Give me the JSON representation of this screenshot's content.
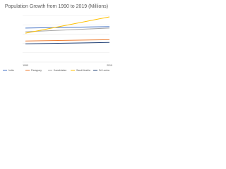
{
  "chart_data": {
    "type": "line",
    "title": "Population Growth from 1990 to 2019 (Millions)",
    "categories": [
      "1990",
      "2019"
    ],
    "series": [
      {
        "name": "India",
        "color": "#4472c4",
        "values": [
          73,
          76
        ]
      },
      {
        "name": "Paraguay",
        "color": "#ed7d31",
        "values": [
          45,
          48
        ]
      },
      {
        "name": "Kazakhstan",
        "color": "#a5a5a5",
        "values": [
          65,
          73
        ]
      },
      {
        "name": "Saudi Arabia",
        "color": "#ffc000",
        "values": [
          62,
          97
        ]
      },
      {
        "name": "Sri Lanka",
        "color": "#264478",
        "values": [
          39,
          42
        ]
      }
    ],
    "ylim": [
      0,
      100
    ],
    "grid": true
  }
}
